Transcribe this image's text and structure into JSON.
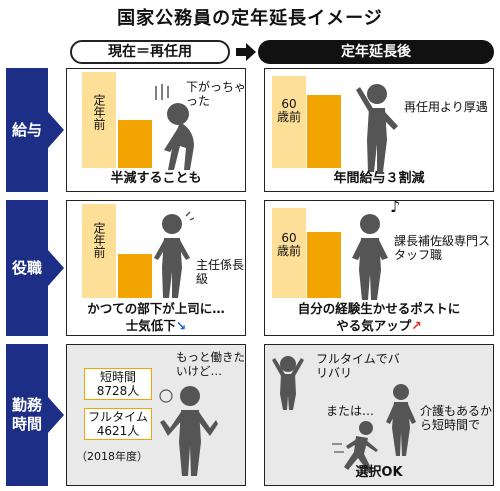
{
  "title": "国家公務員の定年延長イメージ",
  "header": {
    "current": "現在＝再任用",
    "after": "定年延長後"
  },
  "rows": {
    "salary": {
      "label": "給与",
      "cur_bar_label": "定年前",
      "cur_speech": "下がっちゃった",
      "cur_caption": "半減することも",
      "new_bar_label_1": "60",
      "new_bar_label_2": "歳前",
      "new_speech": "再任用より厚遇",
      "new_caption": "年間給与３割減"
    },
    "position": {
      "label": "役職",
      "cur_bar_label": "定年前",
      "cur_note": "主任係長級",
      "cur_caption_1": "かつての部下が上司に…",
      "cur_caption_2": "士気低下",
      "cur_arrow": "↘",
      "new_bar_label_1": "60",
      "new_bar_label_2": "歳前",
      "new_note": "課長補佐級専門スタッフ職",
      "new_caption_1": "自分の経験生かせるポストに",
      "new_caption_2": "やる気アップ",
      "new_arrow": "↗",
      "music": "♪"
    },
    "hours": {
      "label": "勤務時間",
      "cur_speech": "もっと働きたいけど…",
      "box1_title": "短時間",
      "box1_value": "8728人",
      "box2_title": "フルタイム",
      "box2_value": "4621人",
      "year": "（2018年度）",
      "new_speech_1": "フルタイムでバリバリ",
      "new_or": "または…",
      "new_speech_2": "介護もあるから短時間で",
      "new_caption": "選択OK"
    }
  },
  "colors": {
    "navy": "#1d2e86",
    "orange": "#f2a400",
    "light_orange": "#fddf98",
    "panel_gray": "#e9e9e9"
  }
}
